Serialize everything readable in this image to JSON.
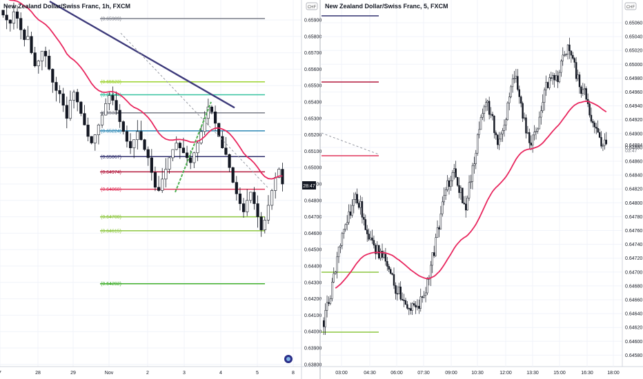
{
  "panels": [
    {
      "id": "left",
      "title": "New Zealand Dollar/Swiss Franc, 1h, FXCM",
      "currency_badge": "CHF",
      "price_tag": "28:47",
      "y_ticks": [
        "0.65900",
        "0.65800",
        "0.65700",
        "0.65600",
        "0.65500",
        "0.65400",
        "0.65300",
        "0.65200",
        "0.65100",
        "0.65000",
        "0.64900",
        "0.64800",
        "0.64700",
        "0.64600",
        "0.64500",
        "0.64400",
        "0.64300",
        "0.64200",
        "0.64100",
        "0.64000",
        "0.63900",
        "0.63800"
      ],
      "x_ticks": [
        "7",
        "28",
        "29",
        "Nov",
        "2",
        "3",
        "4",
        "5",
        "8"
      ],
      "fib_levels": [
        {
          "label": "(0.65909)",
          "color": "#787b86"
        },
        {
          "label": "(0.65523)",
          "color": "#9bd22c"
        },
        {
          "label": "(0.65444)",
          "color": "#36c2a0"
        },
        {
          "label": "(0.65334)",
          "color": "#787b86"
        },
        {
          "label": "(0.65224)",
          "color": "#2a86b4"
        },
        {
          "label": "(0.65067)",
          "color": "#2f2f6e"
        },
        {
          "label": "(0.64974)",
          "color": "#b2163a"
        },
        {
          "label": "(0.64868)",
          "color": "#e0345a"
        },
        {
          "label": "(0.64700)",
          "color": "#8cc63f"
        },
        {
          "label": "(0.64615)",
          "color": "#8cc63f"
        },
        {
          "label": "(0.64292)",
          "color": "#3fae2a"
        }
      ],
      "ma_color": "#e8265e",
      "trendline_color": "#3d3a7a",
      "impulse_color": "#4caf50"
    },
    {
      "id": "right",
      "title": "New Zealand Dollar/Swiss Franc, 5, FXCM",
      "currency_badge": "CHF",
      "last_price": "0.64884",
      "countdown": "03:47",
      "y_ticks": [
        "0.65060",
        "0.65040",
        "0.65020",
        "0.65000",
        "0.64980",
        "0.64960",
        "0.64940",
        "0.64920",
        "0.64900",
        "0.64880",
        "0.64860",
        "0.64840",
        "0.64820",
        "0.64800",
        "0.64780",
        "0.64760",
        "0.64740",
        "0.64720",
        "0.64700",
        "0.64680",
        "0.64660",
        "0.64640",
        "0.64620",
        "0.64600",
        "0.64580"
      ],
      "x_ticks": [
        "03:00",
        "04:30",
        "06:00",
        "07:30",
        "09:00",
        "10:30",
        "12:00",
        "13:30",
        "15:00",
        "16:30",
        "18:00"
      ],
      "level_colors": [
        "#2f2f6e",
        "#b2163a",
        "#e0345a",
        "#8cc63f",
        "#8cc63f"
      ],
      "ma_color": "#e8265e"
    }
  ],
  "chart_data": [
    {
      "type": "candlestick",
      "title": "New Zealand Dollar/Swiss Franc, 1h, FXCM",
      "x_categories": [
        "7",
        "28",
        "29",
        "Nov",
        "2",
        "3",
        "4",
        "5",
        "8"
      ],
      "ylim": [
        0.638,
        0.66
      ],
      "close_path": [
        0.6593,
        0.659,
        0.6588,
        0.6595,
        0.6591,
        0.6584,
        0.6578,
        0.658,
        0.657,
        0.6562,
        0.6565,
        0.6571,
        0.6568,
        0.656,
        0.6552,
        0.6547,
        0.6545,
        0.6538,
        0.653,
        0.6541,
        0.6546,
        0.654,
        0.6533,
        0.6526,
        0.6519,
        0.6515,
        0.652,
        0.6526,
        0.6532,
        0.6539,
        0.6544,
        0.6541,
        0.6535,
        0.6528,
        0.6522,
        0.6516,
        0.6512,
        0.6517,
        0.6522,
        0.6517,
        0.6511,
        0.6506,
        0.6497,
        0.6488,
        0.6486,
        0.6493,
        0.6499,
        0.6506,
        0.6511,
        0.6515,
        0.6512,
        0.6509,
        0.6506,
        0.6503,
        0.6509,
        0.6515,
        0.6522,
        0.653,
        0.6537,
        0.6534,
        0.6527,
        0.6519,
        0.6512,
        0.6508,
        0.65,
        0.6491,
        0.6484,
        0.6478,
        0.6473,
        0.648,
        0.6485,
        0.6478,
        0.647,
        0.6462,
        0.6468,
        0.6477,
        0.6486,
        0.6494,
        0.6499,
        0.649
      ],
      "fib_levels": [
        0.65909,
        0.65523,
        0.65444,
        0.65334,
        0.65224,
        0.65067,
        0.64974,
        0.64868,
        0.647,
        0.64615,
        0.64292
      ]
    },
    {
      "type": "candlestick",
      "title": "New Zealand Dollar/Swiss Franc, 5, FXCM",
      "x_categories": [
        "03:00",
        "04:30",
        "06:00",
        "07:30",
        "09:00",
        "10:30",
        "12:00",
        "13:30",
        "15:00",
        "16:30",
        "18:00"
      ],
      "ylim": [
        0.6457,
        0.6507
      ],
      "close_path": [
        0.6463,
        0.6466,
        0.647,
        0.6474,
        0.6476,
        0.6479,
        0.6481,
        0.6479,
        0.6476,
        0.6474,
        0.6473,
        0.6472,
        0.647,
        0.6468,
        0.6467,
        0.6466,
        0.6465,
        0.6464,
        0.6466,
        0.6468,
        0.6472,
        0.6476,
        0.648,
        0.6483,
        0.6485,
        0.6482,
        0.6479,
        0.6483,
        0.6488,
        0.6492,
        0.6495,
        0.6492,
        0.6488,
        0.649,
        0.6495,
        0.6499,
        0.6496,
        0.6491,
        0.6488,
        0.649,
        0.6494,
        0.6497,
        0.6499,
        0.6498,
        0.6501,
        0.6503,
        0.65,
        0.6497,
        0.6496,
        0.6493,
        0.6491,
        0.6489,
        0.64884
      ],
      "levels": [
        0.65067,
        0.64974,
        0.64868,
        0.647,
        0.64615
      ]
    }
  ]
}
